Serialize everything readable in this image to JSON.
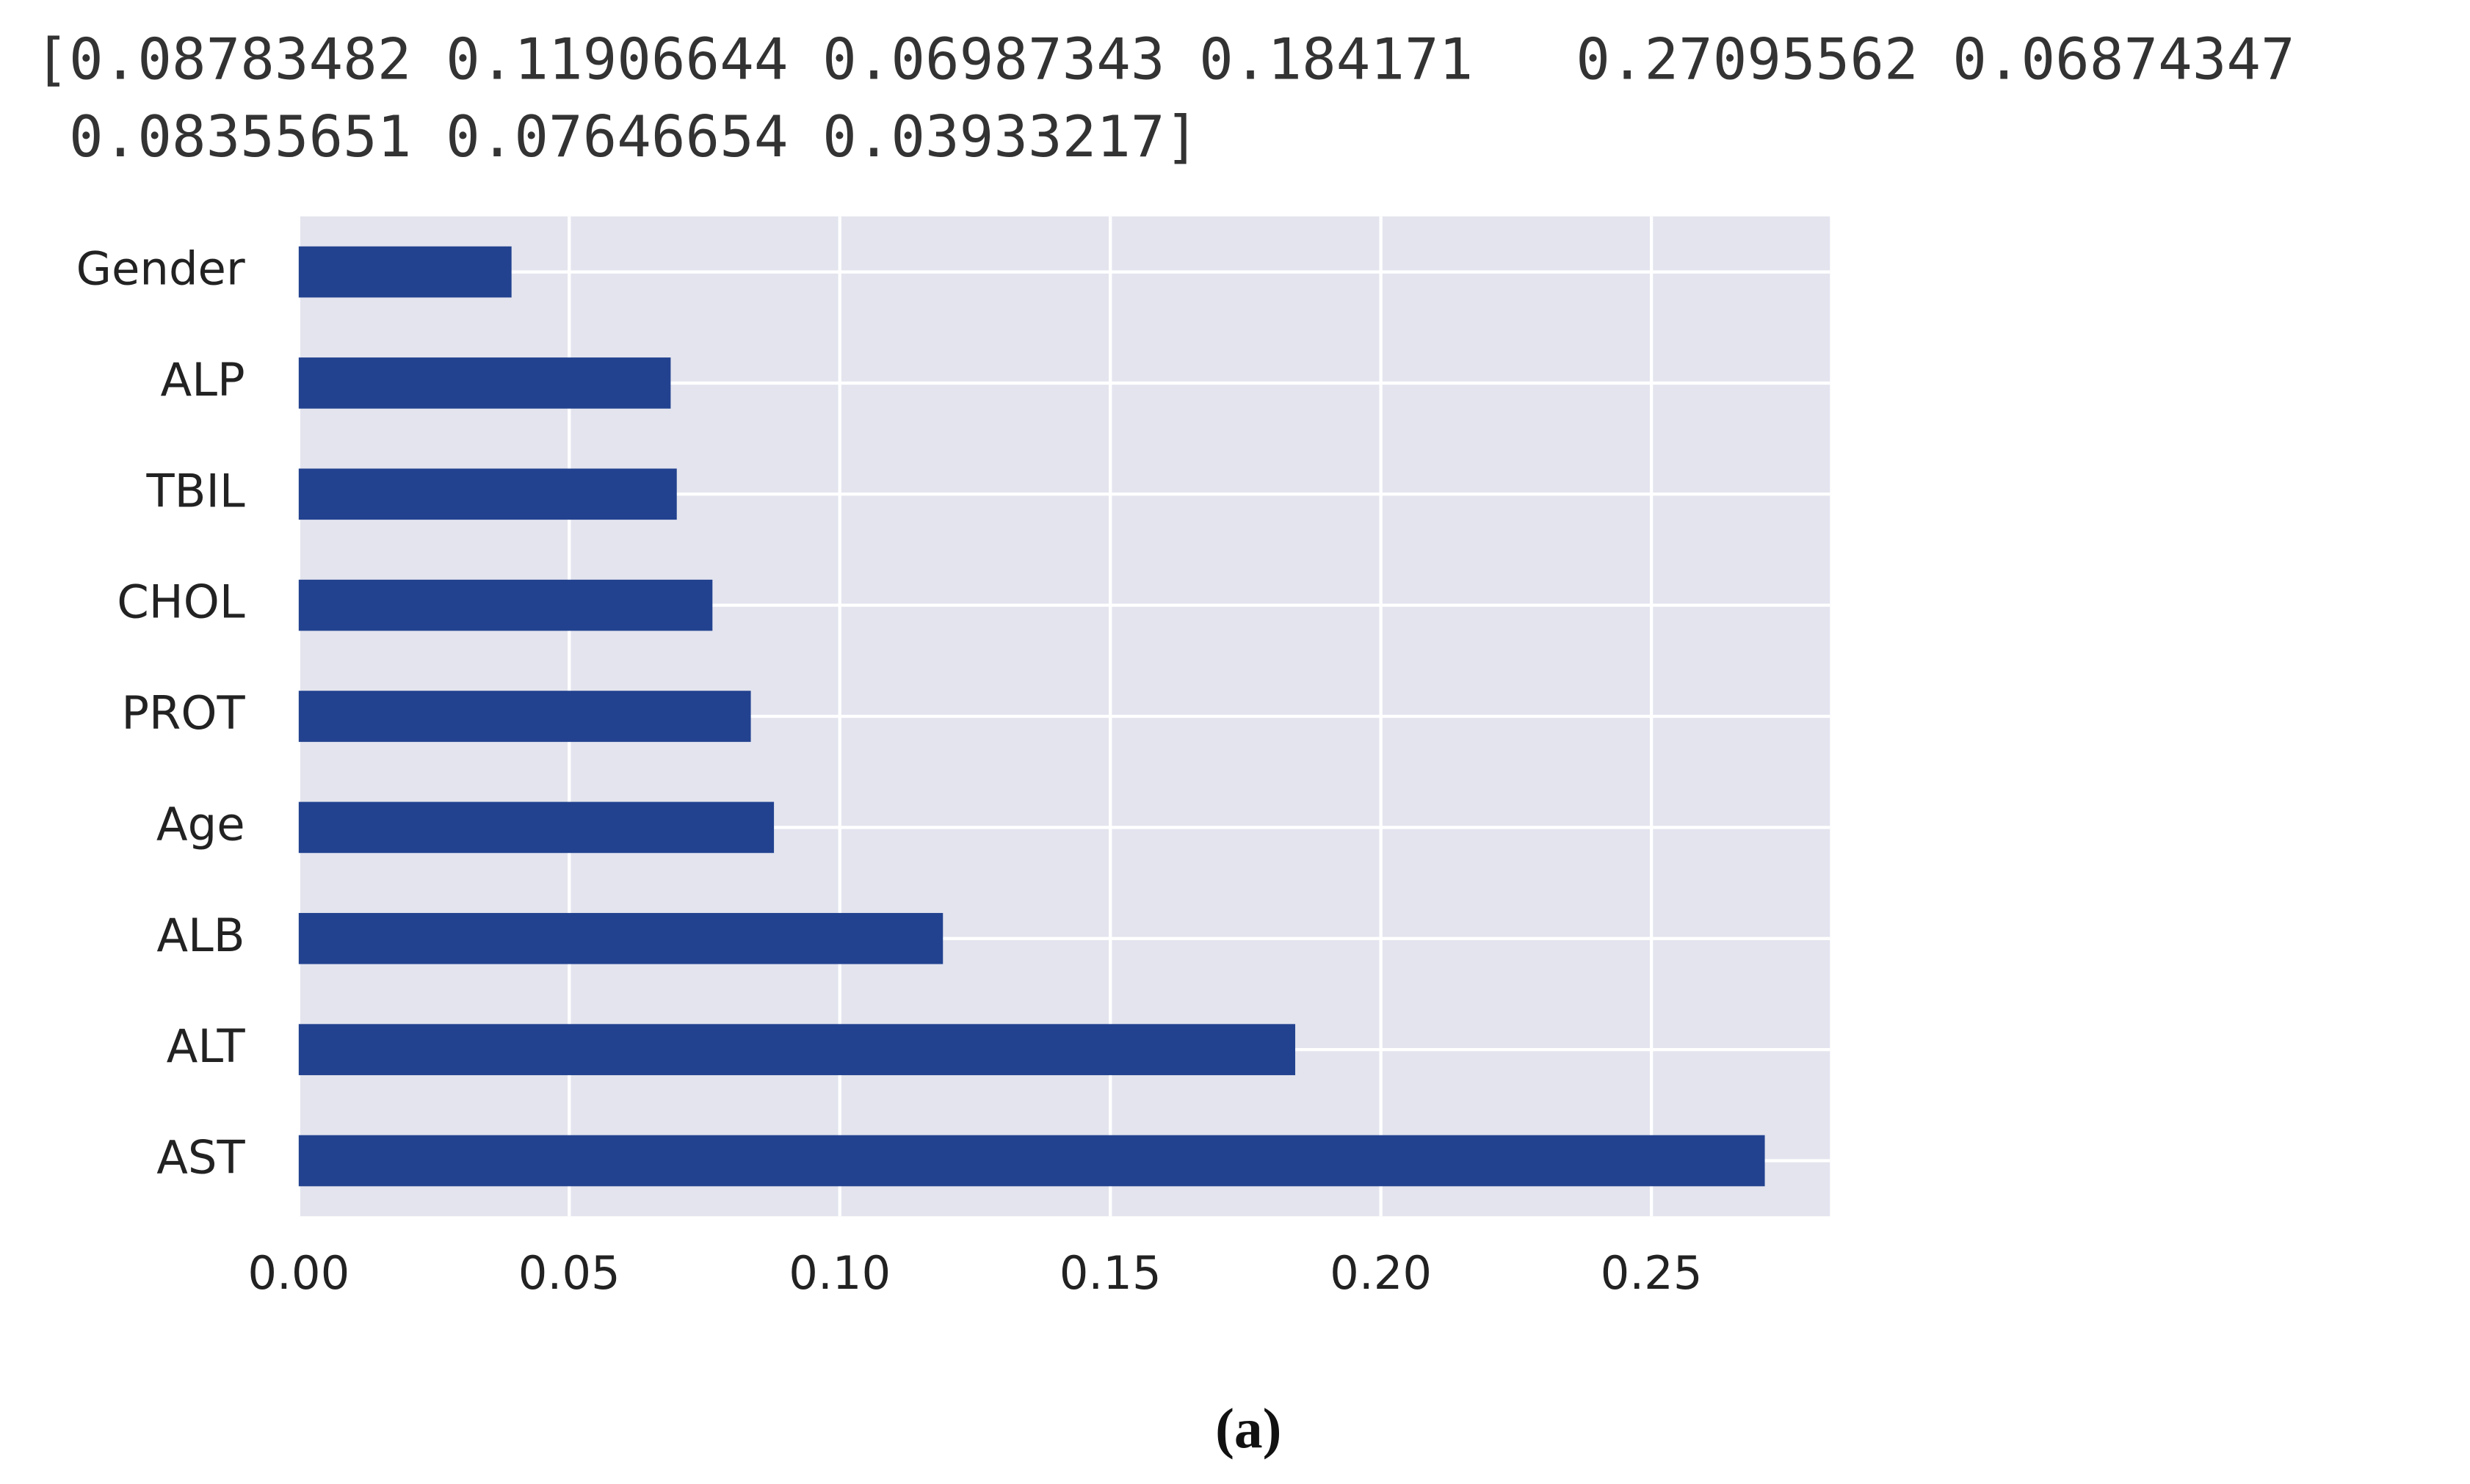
{
  "printed_output": [
    "[0.08783482 0.11906644 0.06987343 0.184171   0.27095562 0.06874347",
    " 0.08355651 0.07646654 0.03933217]"
  ],
  "chart_data": {
    "type": "barh",
    "categories": [
      "AST",
      "ALT",
      "ALB",
      "Age",
      "PROT",
      "CHOL",
      "TBIL",
      "ALP",
      "Gender"
    ],
    "values": [
      0.27095562,
      0.184171,
      0.11906644,
      0.08783482,
      0.08355651,
      0.07646654,
      0.06987343,
      0.06874347,
      0.03933217
    ],
    "color": "#22428f",
    "xlim": [
      0,
      0.283
    ],
    "xticks": [
      {
        "value": 0,
        "label": "0.00"
      },
      0.05,
      {
        "value": 0.1,
        "label": "0.10"
      },
      0.15,
      {
        "value": 0.2,
        "label": "0.20"
      },
      0.25
    ],
    "grid": true
  },
  "caption": "(a)"
}
